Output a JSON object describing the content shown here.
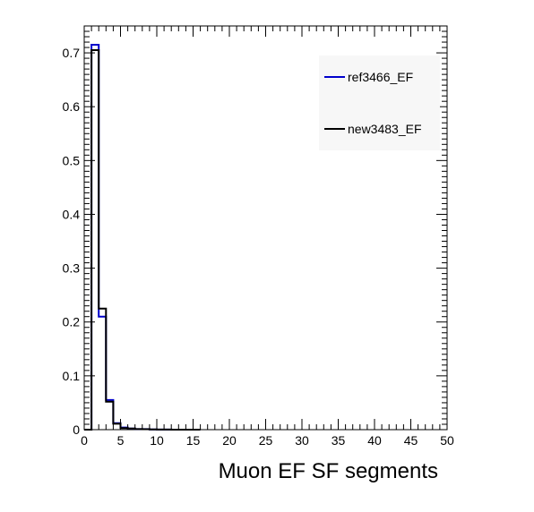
{
  "chart_data": {
    "type": "histogram",
    "xlabel": "Muon EF SF segments",
    "ylabel": "",
    "xlim": [
      0,
      50
    ],
    "ylim": [
      0,
      0.75
    ],
    "x_ticks": [
      "0",
      "5",
      "10",
      "15",
      "20",
      "25",
      "30",
      "35",
      "40",
      "45",
      "50"
    ],
    "y_ticks": [
      "0",
      "0.1",
      "0.2",
      "0.3",
      "0.4",
      "0.5",
      "0.6",
      "0.7"
    ],
    "bin_width": 1,
    "bin_starts": [
      0,
      1,
      2,
      3,
      4,
      5,
      6,
      7,
      8,
      9,
      10,
      11,
      12,
      13,
      14,
      15
    ],
    "legend_position": "top-right",
    "series": [
      {
        "name": "ref3466_EF",
        "color": "#0000cc",
        "values": [
          0,
          0.715,
          0.21,
          0.055,
          0.012,
          0.004,
          0.002,
          0.001,
          0.001,
          0.0005,
          0.0003,
          0.0002,
          0.0001,
          0.0001,
          0,
          0
        ]
      },
      {
        "name": "new3483_EF",
        "color": "#000000",
        "values": [
          0,
          0.705,
          0.225,
          0.052,
          0.011,
          0.003,
          0.002,
          0.001,
          0.0008,
          0.0005,
          0.0003,
          0.0002,
          0.0001,
          0.0001,
          0,
          0
        ]
      }
    ]
  }
}
